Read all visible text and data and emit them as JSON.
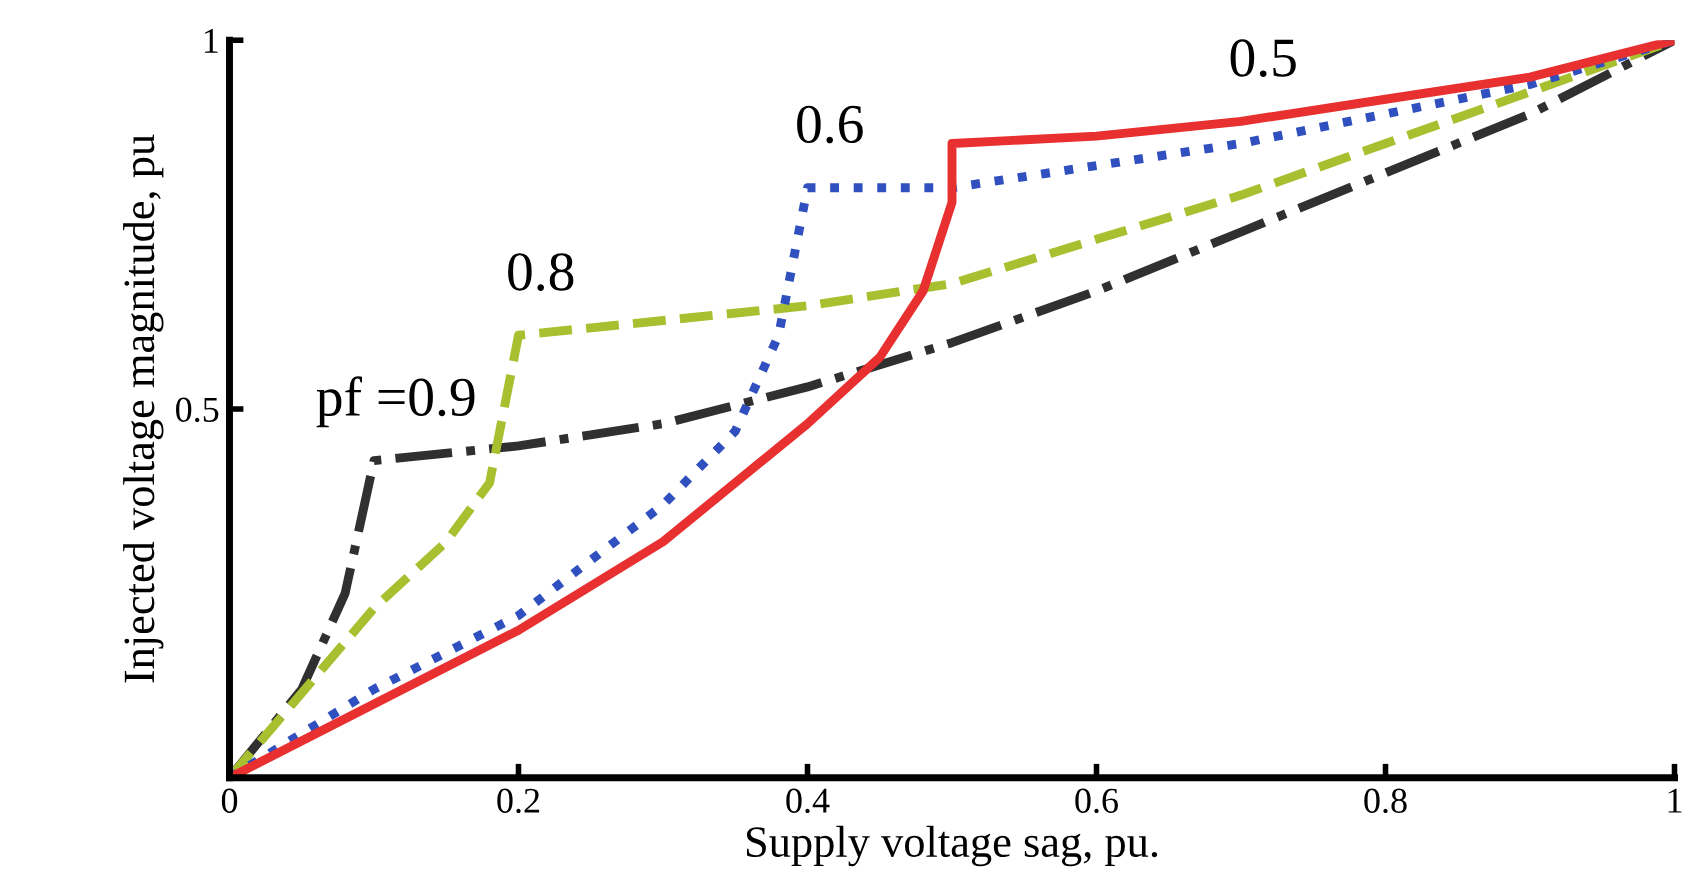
{
  "chart_data": {
    "type": "line",
    "xlabel": "Supply voltage sag, pu.",
    "ylabel": "Injected voltage magnitude, pu",
    "xlim": [
      0,
      1
    ],
    "ylim": [
      0,
      1
    ],
    "xticks": [
      0,
      0.2,
      0.4,
      0.6,
      0.8,
      1
    ],
    "yticks": [
      {
        "value": 0,
        "label": null
      },
      0.5,
      1
    ],
    "grid": false,
    "legend": false,
    "series": [
      {
        "color": "#303030",
        "line_style": "dashdot",
        "x": [
          0,
          0.05,
          0.08,
          0.1,
          0.2,
          0.3,
          0.4,
          0.5,
          0.6,
          0.7,
          0.8,
          0.9,
          1
        ],
        "values": [
          0,
          0.12,
          0.25,
          0.43,
          0.45,
          0.48,
          0.53,
          0.59,
          0.66,
          0.74,
          0.82,
          0.9,
          1
        ]
      },
      {
        "color": "#a8c030",
        "line_style": "dashed",
        "x": [
          0,
          0.1,
          0.15,
          0.18,
          0.19,
          0.2,
          0.3,
          0.4,
          0.5,
          0.6,
          0.7,
          0.8,
          0.9,
          1
        ],
        "values": [
          0,
          0.23,
          0.32,
          0.4,
          0.5,
          0.6,
          0.62,
          0.64,
          0.67,
          0.73,
          0.79,
          0.86,
          0.93,
          1
        ]
      },
      {
        "color": "#3050c0",
        "line_style": "dotted",
        "x": [
          0,
          0.1,
          0.2,
          0.3,
          0.35,
          0.38,
          0.4,
          0.5,
          0.6,
          0.7,
          0.8,
          0.9,
          1
        ],
        "values": [
          0,
          0.12,
          0.22,
          0.37,
          0.47,
          0.6,
          0.8,
          0.8,
          0.83,
          0.86,
          0.9,
          0.94,
          1
        ]
      },
      {
        "color": "#e83030",
        "line_style": "solid",
        "x": [
          0,
          0.1,
          0.2,
          0.3,
          0.4,
          0.45,
          0.48,
          0.5,
          0.5,
          0.6,
          0.7,
          0.8,
          0.9,
          1
        ],
        "values": [
          0,
          0.1,
          0.2,
          0.32,
          0.48,
          0.57,
          0.66,
          0.78,
          0.86,
          0.87,
          0.89,
          0.92,
          0.95,
          1
        ]
      }
    ],
    "annotations": [
      {
        "text": "pf =0.9",
        "x": 0.1,
        "y": 0.43
      },
      {
        "text": "0.8",
        "x": 0.2,
        "y": 0.6
      },
      {
        "text": "0.6",
        "x": 0.4,
        "y": 0.8
      },
      {
        "text": "0.5",
        "x": 0.7,
        "y": 0.89
      }
    ]
  }
}
